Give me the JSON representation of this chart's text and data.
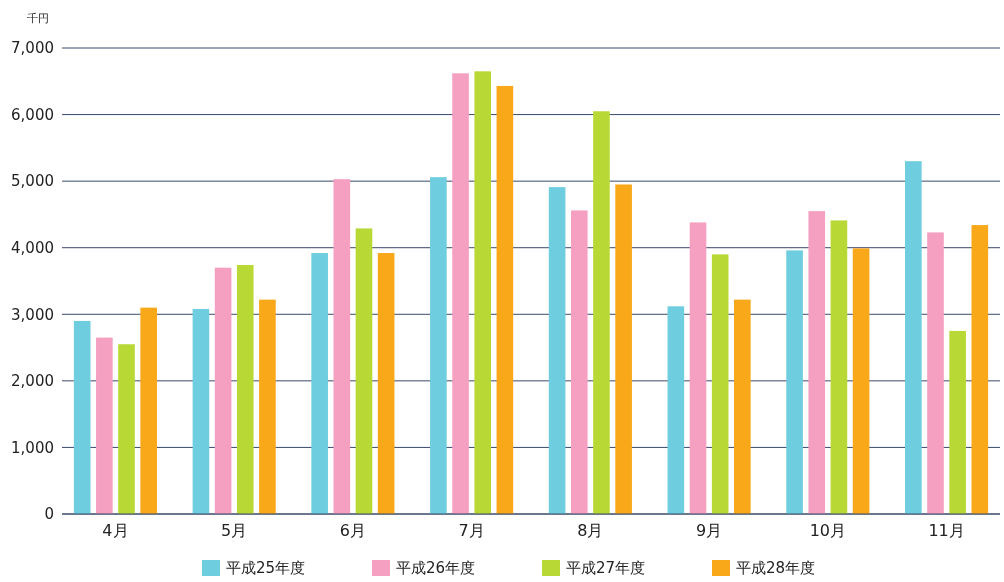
{
  "chart_data": {
    "type": "bar",
    "ylabel": "千円",
    "categories": [
      "4月",
      "5月",
      "6月",
      "7月",
      "8月",
      "9月",
      "10月",
      "11月"
    ],
    "series": [
      {
        "name": "平成25年度",
        "color": "#6fcde0",
        "values": [
          2900,
          3080,
          3920,
          5060,
          4910,
          3120,
          3960,
          5300
        ]
      },
      {
        "name": "平成26年度",
        "color": "#f5a0c0",
        "values": [
          2650,
          3700,
          5030,
          6620,
          4560,
          4380,
          4550,
          4230
        ]
      },
      {
        "name": "平成27年度",
        "color": "#b8d935",
        "values": [
          2550,
          3740,
          4290,
          6650,
          6050,
          3900,
          4410,
          2750
        ]
      },
      {
        "name": "平成28年度",
        "color": "#f8a818",
        "values": [
          3100,
          3220,
          3920,
          6430,
          4950,
          3220,
          3990,
          4340
        ]
      }
    ],
    "ylim": [
      0,
      7000
    ],
    "yticks": [
      0,
      {
        "value": 1000,
        "label": "1,000"
      },
      {
        "value": 2000,
        "label": "2,000"
      },
      {
        "value": 3000,
        "label": "3,000"
      },
      {
        "value": 4000,
        "label": "4,000"
      },
      {
        "value": 5000,
        "label": "5,000"
      },
      {
        "value": 6000,
        "label": "6,000"
      },
      {
        "value": 7000,
        "label": "7,000"
      }
    ],
    "grid": "y",
    "legend": "bottom"
  }
}
